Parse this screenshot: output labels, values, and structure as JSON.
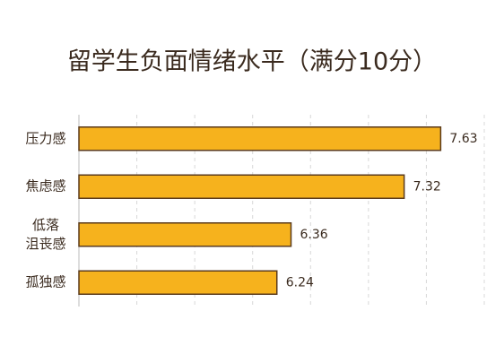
{
  "chart_data": {
    "type": "bar",
    "orientation": "horizontal",
    "title": "留学生负面情绪水平（满分10分）",
    "categories": [
      "压力感",
      "焦虑感",
      "低落\n沮丧感",
      "孤独感"
    ],
    "values": [
      7.63,
      7.32,
      6.36,
      6.24
    ],
    "color": "#f6b21d",
    "xlim": [
      4.56,
      8.0
    ],
    "grid": true
  }
}
